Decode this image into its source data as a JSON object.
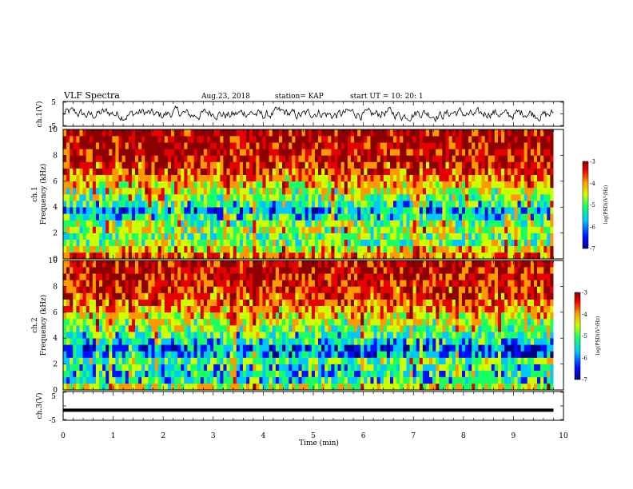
{
  "header": {
    "title": "VLF Spectra",
    "date": "Aug.23, 2018",
    "station": "station= KAP",
    "start": "start  UT =   10: 20: 1"
  },
  "colors": {
    "background": "#ffffff",
    "axes": "#000000",
    "colormap": [
      "#00008c",
      "#0010ff",
      "#00c8ff",
      "#19ff66",
      "#ccff00",
      "#ff9900",
      "#e60000",
      "#8c0000"
    ]
  },
  "chart_data": [
    {
      "type": "line",
      "panel": "ch1-waveform",
      "ylabel": "ch.1(V)",
      "ylim": [
        -5,
        5
      ],
      "y_ticks": [
        "5",
        "-5"
      ],
      "xlim": [
        0,
        10
      ],
      "description_of_series": "noisy voltage trace roughly between -3 and +3 V across 0-9.8 min",
      "x_end": 9.8
    },
    {
      "type": "heatmap",
      "panel": "ch1-spectrogram",
      "ylabel_line1": "ch.1",
      "ylabel_line2": "Frequency  (kHz)",
      "ylim": [
        0,
        10
      ],
      "y_ticks": [
        "0",
        "2",
        "4",
        "6",
        "8",
        "10"
      ],
      "xlim": [
        0,
        10
      ],
      "x_end": 9.8,
      "frequency_bands_khz": [
        0,
        0.5,
        1,
        1.5,
        2,
        2.5,
        3,
        3.5,
        4,
        4.5,
        5,
        5.5,
        6,
        6.5,
        7,
        7.5,
        8,
        8.5,
        9,
        9.5,
        10
      ],
      "mean_log_psd": [
        -4.2,
        -4.6,
        -5.1,
        -5.2,
        -4.9,
        -5.1,
        -5.5,
        -5.9,
        -5.4,
        -5.1,
        -4.9,
        -4.6,
        -4.3,
        -4.0,
        -3.8,
        -3.7,
        -3.6,
        -3.6,
        -3.5,
        -3.5
      ],
      "colorbar": {
        "label": "log(PSD)(V²/Hz)",
        "range": [
          -7,
          -3
        ],
        "ticks": [
          "-3",
          "-4",
          "-5",
          "-6",
          "-7"
        ]
      }
    },
    {
      "type": "heatmap",
      "panel": "ch2-spectrogram",
      "ylabel_line1": "ch.2",
      "ylabel_line2": "Frequency  (kHz)",
      "ylim": [
        0,
        10
      ],
      "y_ticks": [
        "0",
        "2",
        "4",
        "6",
        "8",
        "10"
      ],
      "xlim": [
        0,
        10
      ],
      "x_end": 9.8,
      "frequency_bands_khz": [
        0,
        0.5,
        1,
        1.5,
        2,
        2.5,
        3,
        3.5,
        4,
        4.5,
        5,
        5.5,
        6,
        6.5,
        7,
        7.5,
        8,
        8.5,
        9,
        9.5,
        10
      ],
      "mean_log_psd": [
        -4.8,
        -5.4,
        -5.6,
        -5.4,
        -5.2,
        -5.9,
        -6.1,
        -5.6,
        -5.3,
        -5.0,
        -4.8,
        -4.6,
        -4.3,
        -4.1,
        -3.9,
        -3.8,
        -3.7,
        -3.7,
        -3.6,
        -3.6
      ],
      "colorbar": {
        "label": "log(PSD)(V²/Hz)",
        "range": [
          -7,
          -3
        ],
        "ticks": [
          "-3",
          "-4",
          "-5",
          "-6",
          "-7"
        ]
      }
    },
    {
      "type": "line",
      "panel": "ch3-waveform",
      "ylabel": "ch.3(V)",
      "ylim": [
        -5,
        5
      ],
      "y_ticks": [
        "5",
        "-5"
      ],
      "xlim": [
        0,
        10
      ],
      "x_end": 9.8,
      "constant_value": -1.5
    }
  ],
  "x_axis": {
    "label": "Time  (min)",
    "ticks": [
      "0",
      "1",
      "2",
      "3",
      "4",
      "5",
      "6",
      "7",
      "8",
      "9",
      "10"
    ]
  }
}
